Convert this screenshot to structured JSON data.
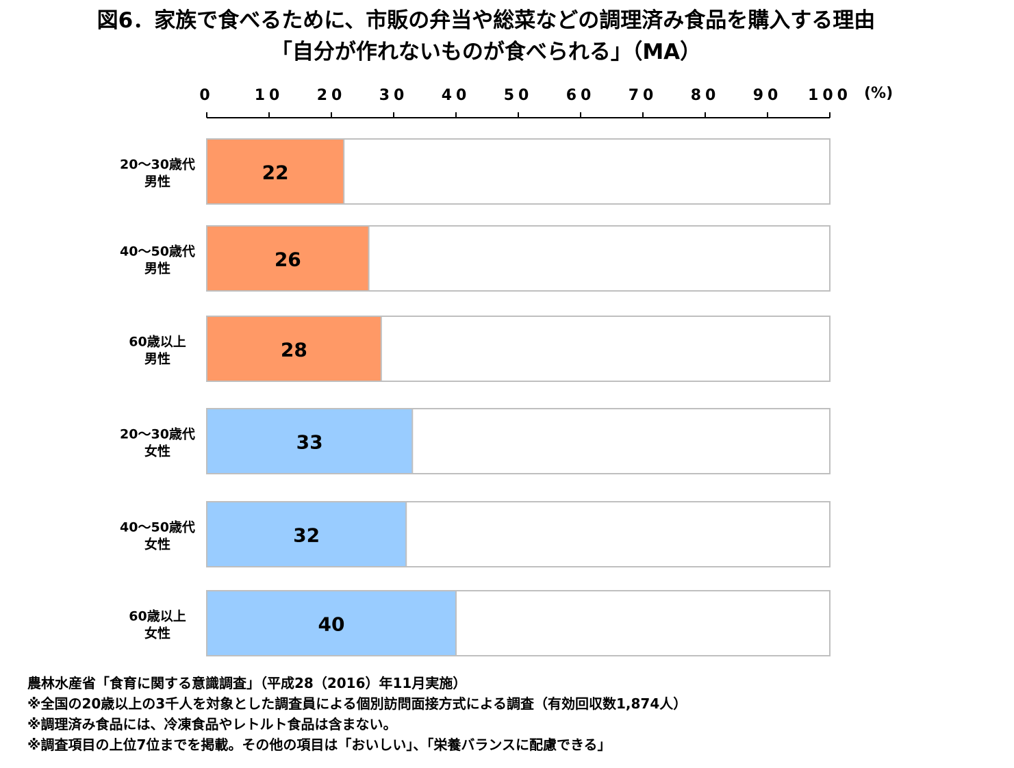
{
  "title": {
    "line1": "図6．家族で食べるために、市販の弁当や総菜などの調理済み食品を購入する理由",
    "line2": "「自分が作れないものが食べられる」（MA）"
  },
  "chart_data": {
    "type": "bar",
    "orientation": "horizontal",
    "categories": [
      [
        "20～30歳代",
        "男性"
      ],
      [
        "40～50歳代",
        "男性"
      ],
      [
        "60歳以上",
        "男性"
      ],
      [
        "20～30歳代",
        "女性"
      ],
      [
        "40～50歳代",
        "女性"
      ],
      [
        "60歳以上",
        "女性"
      ]
    ],
    "values": [
      22,
      26,
      28,
      33,
      32,
      40
    ],
    "bar_colors": [
      "#ff9966",
      "#ff9966",
      "#ff9966",
      "#99ccff",
      "#99ccff",
      "#99ccff"
    ],
    "xlim": [
      0,
      100
    ],
    "ticks": [
      0,
      10,
      20,
      30,
      40,
      50,
      60,
      70,
      80,
      90,
      100
    ],
    "unit_label": "(%)",
    "axis_position": "top",
    "grid": false
  },
  "notes": [
    "農林水産省「食育に関する意識調査」（平成28（2016）年11月実施）",
    "※全国の20歳以上の3千人を対象とした調査員による個別訪問面接方式による調査（有効回収数1,874人）",
    "※調理済み食品には、冷凍食品やレトルト食品は含まない。",
    "※調査項目の上位7位までを掲載。その他の項目は「おいしい」、「栄養バランスに配慮できる」"
  ]
}
